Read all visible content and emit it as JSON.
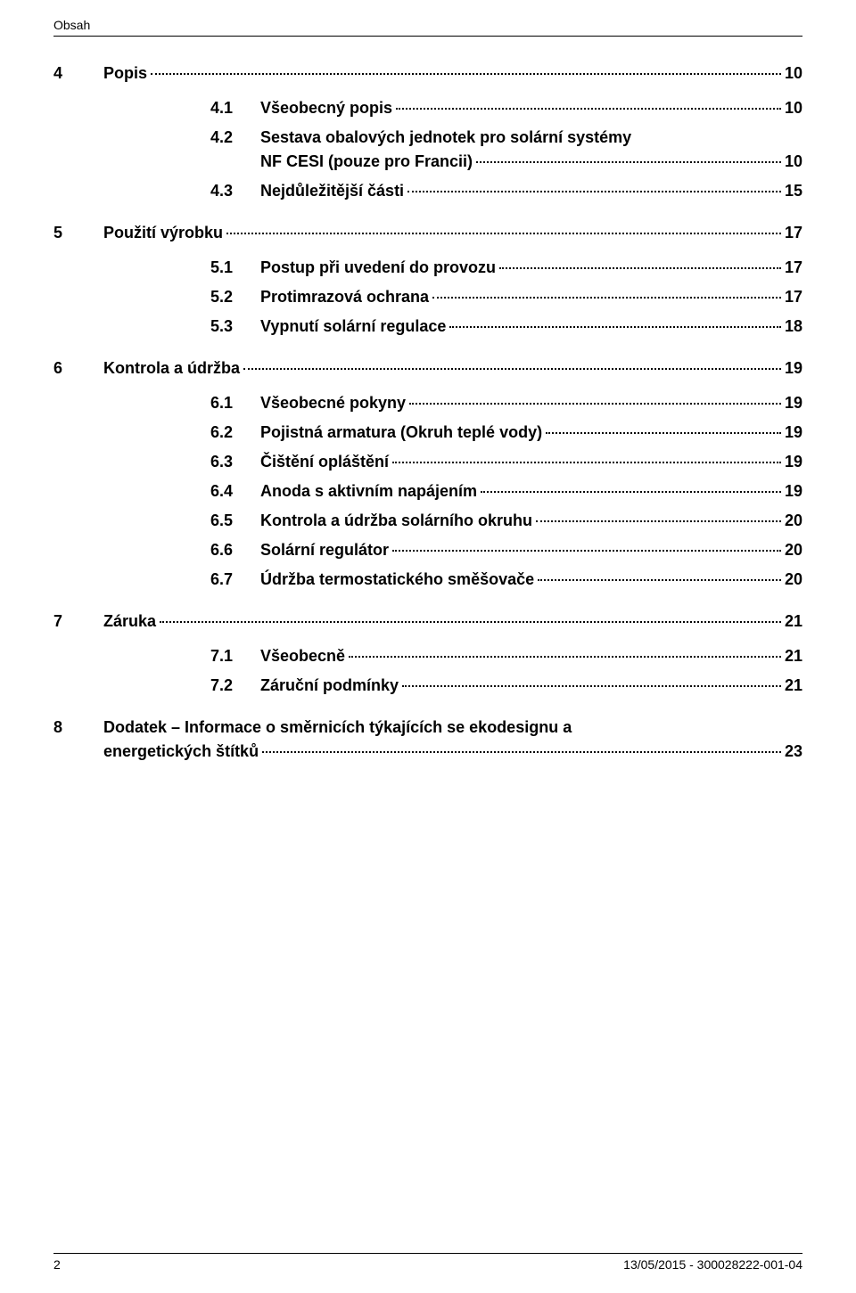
{
  "header": {
    "section_label": "Obsah"
  },
  "toc": {
    "s4": {
      "num": "4",
      "title": "Popis",
      "page": "10",
      "items": [
        {
          "num": "4.1",
          "title": "Všeobecný popis",
          "page": "10"
        },
        {
          "num": "4.2",
          "title_l1": "Sestava obalových jednotek pro solární systémy",
          "title_l2": "NF CESI (pouze pro Francii)",
          "page": "10"
        },
        {
          "num": "4.3",
          "title": "Nejdůležitější části",
          "page": "15"
        }
      ]
    },
    "s5": {
      "num": "5",
      "title": "Použití výrobku",
      "page": "17",
      "items": [
        {
          "num": "5.1",
          "title": "Postup při uvedení do provozu",
          "page": "17"
        },
        {
          "num": "5.2",
          "title": "Protimrazová ochrana",
          "page": "17"
        },
        {
          "num": "5.3",
          "title": "Vypnutí solární regulace",
          "page": "18"
        }
      ]
    },
    "s6": {
      "num": "6",
      "title": "Kontrola a údržba",
      "page": "19",
      "items": [
        {
          "num": "6.1",
          "title": "Všeobecné pokyny",
          "page": "19"
        },
        {
          "num": "6.2",
          "title": "Pojistná armatura (Okruh teplé vody)",
          "page": "19"
        },
        {
          "num": "6.3",
          "title": "Čištění opláštění",
          "page": "19"
        },
        {
          "num": "6.4",
          "title": "Anoda s aktivním napájením",
          "page": "19"
        },
        {
          "num": "6.5",
          "title": "Kontrola a údržba solárního okruhu",
          "page": "20"
        },
        {
          "num": "6.6",
          "title": "Solární regulátor",
          "page": "20"
        },
        {
          "num": "6.7",
          "title": "Údržba termostatického směšovače",
          "page": "20"
        }
      ]
    },
    "s7": {
      "num": "7",
      "title": "Záruka",
      "page": "21",
      "items": [
        {
          "num": "7.1",
          "title": "Všeobecně",
          "page": "21"
        },
        {
          "num": "7.2",
          "title": "Záruční podmínky",
          "page": "21"
        }
      ]
    },
    "s8": {
      "num": "8",
      "title_l1": "Dodatek – Informace o směrnicích týkajících se ekodesignu a",
      "title_l2": "energetických štítků",
      "page": "23"
    }
  },
  "footer": {
    "page_number": "2",
    "doc_id": "13/05/2015 - 300028222-001-04"
  },
  "style": {
    "font_family": "Arial",
    "heading_fontsize_pt": 14,
    "body_fontsize_pt": 10,
    "text_color": "#000000",
    "background_color": "#ffffff",
    "rule_color": "#000000"
  }
}
